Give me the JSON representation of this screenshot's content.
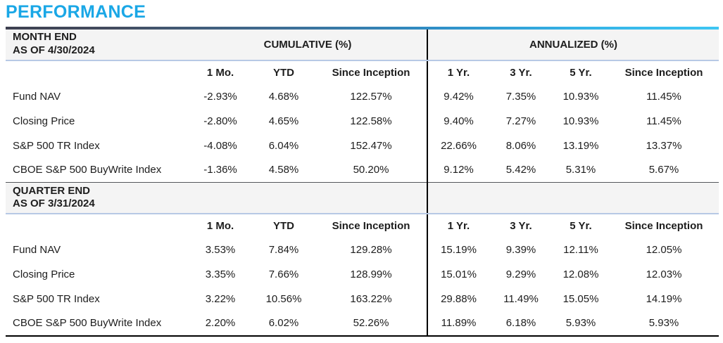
{
  "page_title": "PERFORMANCE",
  "colors": {
    "accent": "#1aa7e6",
    "rule_gradient_left": "#3d4050",
    "rule_gradient_right": "#3ec6f3",
    "band_background": "#f4f4f4",
    "band_underline": "#b7c9e5",
    "divider": "#000000"
  },
  "table": {
    "group_headers": {
      "cumulative": "CUMULATIVE (%)",
      "annualized": "ANNUALIZED (%)"
    },
    "column_headers": [
      "1 Mo.",
      "YTD",
      "Since Inception",
      "1 Yr.",
      "3 Yr.",
      "5 Yr.",
      "Since Inception"
    ],
    "sections": [
      {
        "title": "MONTH END\nAS OF 4/30/2024",
        "rows": [
          {
            "label": "Fund NAV",
            "values": [
              "-2.93%",
              "4.68%",
              "122.57%",
              "9.42%",
              "7.35%",
              "10.93%",
              "11.45%"
            ]
          },
          {
            "label": "Closing Price",
            "values": [
              "-2.80%",
              "4.65%",
              "122.58%",
              "9.40%",
              "7.27%",
              "10.93%",
              "11.45%"
            ]
          },
          {
            "label": "S&P 500 TR Index",
            "values": [
              "-4.08%",
              "6.04%",
              "152.47%",
              "22.66%",
              "8.06%",
              "13.19%",
              "13.37%"
            ]
          },
          {
            "label": "CBOE S&P 500 BuyWrite Index",
            "values": [
              "-1.36%",
              "4.58%",
              "50.20%",
              "9.12%",
              "5.42%",
              "5.31%",
              "5.67%"
            ]
          }
        ]
      },
      {
        "title": "QUARTER END\nAS OF 3/31/2024",
        "rows": [
          {
            "label": "Fund NAV",
            "values": [
              "3.53%",
              "7.84%",
              "129.28%",
              "15.19%",
              "9.39%",
              "12.11%",
              "12.05%"
            ]
          },
          {
            "label": "Closing Price",
            "values": [
              "3.35%",
              "7.66%",
              "128.99%",
              "15.01%",
              "9.29%",
              "12.08%",
              "12.03%"
            ]
          },
          {
            "label": "S&P 500 TR Index",
            "values": [
              "3.22%",
              "10.56%",
              "163.22%",
              "29.88%",
              "11.49%",
              "15.05%",
              "14.19%"
            ]
          },
          {
            "label": "CBOE S&P 500 BuyWrite Index",
            "values": [
              "2.20%",
              "6.02%",
              "52.26%",
              "11.89%",
              "6.18%",
              "5.93%",
              "5.93%"
            ]
          }
        ]
      }
    ]
  }
}
